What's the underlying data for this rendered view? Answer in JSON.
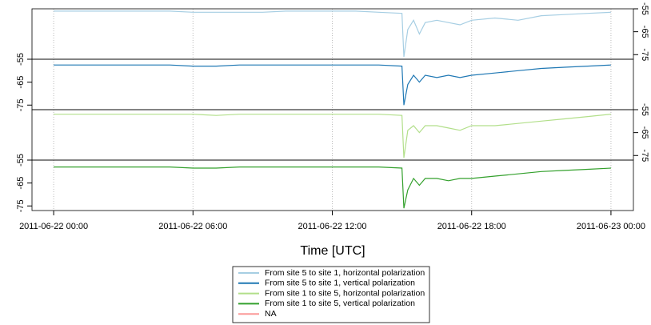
{
  "chart_data": {
    "type": "line",
    "xlabel": "Time [UTC]",
    "x": [
      "2011-06-22 00:00",
      "2011-06-22 01:00",
      "2011-06-22 02:00",
      "2011-06-22 03:00",
      "2011-06-22 04:00",
      "2011-06-22 05:00",
      "2011-06-22 06:00",
      "2011-06-22 07:00",
      "2011-06-22 08:00",
      "2011-06-22 09:00",
      "2011-06-22 10:00",
      "2011-06-22 11:00",
      "2011-06-22 12:00",
      "2011-06-22 13:00",
      "2011-06-22 14:00",
      "2011-06-22 15:00",
      "2011-06-22 15:05",
      "2011-06-22 15:15",
      "2011-06-22 15:30",
      "2011-06-22 15:45",
      "2011-06-22 16:00",
      "2011-06-22 16:30",
      "2011-06-22 17:00",
      "2011-06-22 17:30",
      "2011-06-22 18:00",
      "2011-06-22 19:00",
      "2011-06-22 20:00",
      "2011-06-22 21:00",
      "2011-06-22 22:00",
      "2011-06-22 23:00",
      "2011-06-23 00:00"
    ],
    "xlim": [
      "2011-06-21 23:04",
      "2011-06-23 00:58"
    ],
    "xticks": [
      "2011-06-22 00:00",
      "2011-06-22 06:00",
      "2011-06-22 12:00",
      "2011-06-22 18:00",
      "2011-06-23 00:00"
    ],
    "ylim": [
      -77,
      -55
    ],
    "yticks": [
      -55,
      -65,
      -75
    ],
    "grid": true,
    "series": [
      {
        "name": "From site 5 to site 1, horizontal polarization",
        "color": "#a6cee3",
        "values": [
          -56,
          -56,
          -56,
          -56,
          -56,
          -56,
          -56.5,
          -56.5,
          -56.5,
          -56.5,
          -56,
          -56,
          -56,
          -56,
          -56.5,
          -57,
          -76,
          -64,
          -60,
          -66,
          -61,
          -60,
          -61,
          -62,
          -60,
          -59,
          -60,
          -58,
          -57.5,
          -57,
          -56.5
        ]
      },
      {
        "name": "From site 5 to site 1, vertical polarization",
        "color": "#1f78b4",
        "values": [
          -57.5,
          -57.5,
          -57.5,
          -57.5,
          -57.5,
          -57.5,
          -58,
          -58,
          -57.5,
          -57.5,
          -57.5,
          -57.5,
          -57.5,
          -57.5,
          -57.5,
          -58,
          -75,
          -66,
          -62,
          -65,
          -62,
          -63,
          -62,
          -63,
          -62,
          -61,
          -60,
          -59,
          -58.5,
          -58,
          -57.5
        ]
      },
      {
        "name": "From site 1 to site 5, horizontal polarization",
        "color": "#b2df8a",
        "values": [
          -57,
          -57,
          -57,
          -57,
          -57,
          -57,
          -57,
          -57.5,
          -57,
          -57,
          -57,
          -57,
          -57,
          -57,
          -57,
          -57.5,
          -76,
          -64,
          -62,
          -65,
          -62,
          -62,
          -63,
          -64,
          -62,
          -62,
          -61,
          -60,
          -59,
          -58,
          -57
        ]
      },
      {
        "name": "From site 1 to site 5, vertical polarization",
        "color": "#33a02c",
        "values": [
          -58,
          -58,
          -58,
          -58,
          -58,
          -58,
          -58.5,
          -58.5,
          -58,
          -58,
          -58,
          -58,
          -58,
          -58,
          -58,
          -58.5,
          -76,
          -68,
          -63,
          -66,
          -63,
          -63,
          -64,
          -63,
          -63,
          -62,
          -61,
          -60,
          -59.5,
          -59,
          -58.5
        ]
      },
      {
        "name": "NA",
        "color": "#fb9a99"
      }
    ]
  }
}
